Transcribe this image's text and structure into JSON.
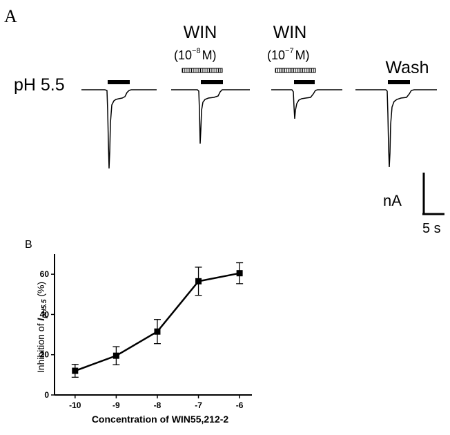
{
  "panel_a": {
    "label": "A",
    "condition_label": "pH 5.5",
    "traces": [
      {
        "name": "control",
        "label_line1": "",
        "label_exp": "",
        "label_line2": ""
      },
      {
        "name": "win-1e-8",
        "label_line1": "WIN",
        "label_exp": "−8",
        "label_line2_pre": "(10",
        "label_line2_post": "M)"
      },
      {
        "name": "win-1e-7",
        "label_line1": "WIN",
        "label_exp": "−7",
        "label_line2_pre": "(10",
        "label_line2_post": "M)"
      },
      {
        "name": "wash",
        "label_line1": "Wash"
      }
    ],
    "scale_bar": {
      "y_label": "nA",
      "x_label": "5 s"
    }
  },
  "panel_b": {
    "label": "B",
    "chart_data": {
      "type": "line",
      "x": [
        -10,
        -9,
        -8,
        -7,
        -6
      ],
      "tick_labels_x": [
        "-10",
        "-9",
        "-8",
        "-7",
        "-6"
      ],
      "series": [
        {
          "values": [
            12,
            19.5,
            31.5,
            56.5,
            60.5
          ],
          "errors": [
            3.2,
            4.5,
            6,
            7,
            5.2
          ]
        }
      ],
      "ylim": [
        0,
        70
      ],
      "yticks": [
        0,
        20,
        40,
        60
      ],
      "xlim": [
        -10.5,
        -5.7
      ],
      "xlabel": "Concentration of WIN55,212-2",
      "ylabel_prefix": "Inhibition of ",
      "ylabel_italic": "I",
      "ylabel_sub": "pH5.5",
      "ylabel_suffix": " (%)",
      "grid": false,
      "marker": "square",
      "color": "#000000"
    }
  }
}
